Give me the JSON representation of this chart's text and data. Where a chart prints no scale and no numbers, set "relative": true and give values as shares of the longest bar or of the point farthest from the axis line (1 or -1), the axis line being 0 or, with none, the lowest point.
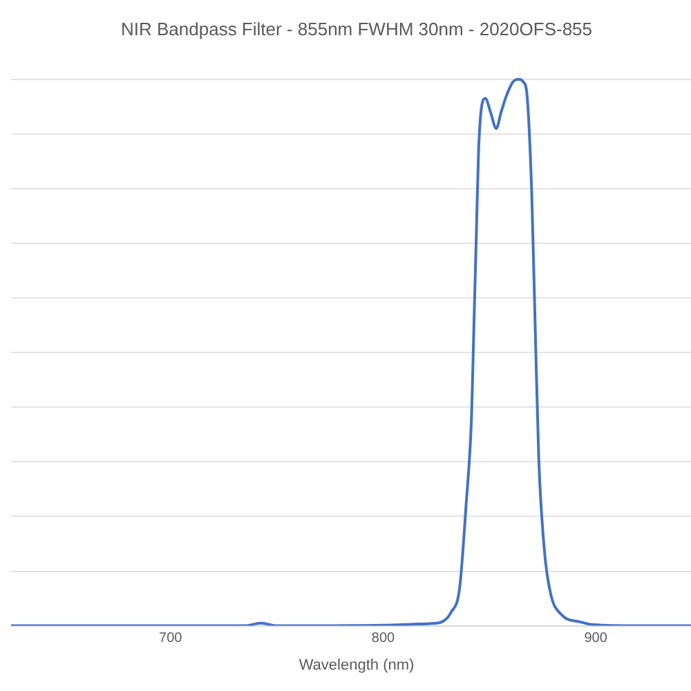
{
  "chart_data": {
    "type": "line",
    "title": "NIR Bandpass Filter - 855nm FWHM 30nm - 2020OFS-855",
    "xlabel": "Wavelength (nm)",
    "relative": true,
    "xlim": [
      625,
      950
    ],
    "xticks": [
      700,
      800,
      900
    ],
    "grid": "y",
    "marker": "none",
    "line_style": "solid",
    "legend": false,
    "series": [
      {
        "color": "#4472c4",
        "x": [
          625,
          700,
          735,
          742.5,
          750,
          800,
          815,
          822,
          827.5,
          832,
          836,
          839,
          841.6,
          842.7,
          843.8,
          844.9,
          846.6,
          848.1,
          850.5,
          853.2,
          855.5,
          858,
          861,
          863.8,
          866,
          867.7,
          869.9,
          871.5,
          873.2,
          875.8,
          878.7,
          884,
          892.8,
          899,
          920,
          950
        ],
        "values": [
          0,
          0,
          0,
          0.005,
          0,
          0.001,
          0.003,
          0.004,
          0.007,
          0.025,
          0.07,
          0.22,
          0.385,
          0.55,
          0.71,
          0.87,
          0.956,
          0.965,
          0.94,
          0.91,
          0.94,
          0.97,
          0.995,
          1,
          0.995,
          0.97,
          0.79,
          0.55,
          0.305,
          0.14,
          0.06,
          0.02,
          0.007,
          0.002,
          0,
          0
        ]
      }
    ]
  }
}
